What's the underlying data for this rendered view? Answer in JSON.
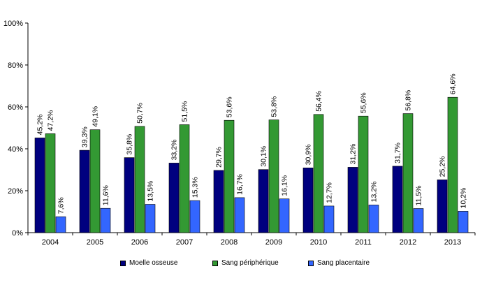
{
  "chart_data": {
    "type": "bar",
    "categories": [
      "2004",
      "2005",
      "2006",
      "2007",
      "2008",
      "2009",
      "2010",
      "2011",
      "2012",
      "2013"
    ],
    "series": [
      {
        "name": "Moelle osseuse",
        "color": "#00007f",
        "values": [
          45.2,
          39.3,
          35.8,
          33.2,
          29.7,
          30.1,
          30.9,
          31.2,
          31.7,
          25.2
        ],
        "labels": [
          "45,2%",
          "39,3%",
          "35,8%",
          "33,2%",
          "29,7%",
          "30,1%",
          "30,9%",
          "31,2%",
          "31,7%",
          "25,2%"
        ]
      },
      {
        "name": "Sang périphérique",
        "color": "#339933",
        "values": [
          47.2,
          49.1,
          50.7,
          51.5,
          53.6,
          53.8,
          56.4,
          55.6,
          56.8,
          64.6
        ],
        "labels": [
          "47,2%",
          "49,1%",
          "50,7%",
          "51,5%",
          "53,6%",
          "53,8%",
          "56,4%",
          "55,6%",
          "56,8%",
          "64,6%"
        ]
      },
      {
        "name": "Sang placentaire",
        "color": "#3366ff",
        "values": [
          7.6,
          11.6,
          13.5,
          15.3,
          16.7,
          16.1,
          12.7,
          13.2,
          11.5,
          10.2
        ],
        "labels": [
          "7,6%",
          "11,6%",
          "13,5%",
          "15,3%",
          "16,7%",
          "16,1%",
          "12,7%",
          "13,2%",
          "11,5%",
          "10,2%"
        ]
      }
    ],
    "yticks": [
      "0%",
      "20%",
      "40%",
      "60%",
      "80%",
      "100%"
    ],
    "ylim": [
      0,
      100
    ],
    "grid": false,
    "legend_position": "bottom"
  }
}
